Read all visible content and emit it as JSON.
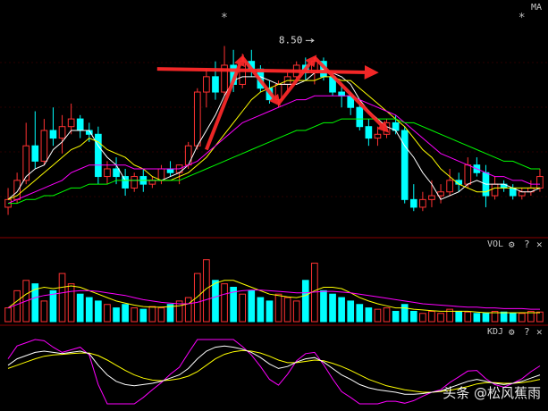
{
  "chart_data": {
    "type": "candlestick",
    "title": "",
    "main_panel": {
      "indicator_label": "MA",
      "price_range": [
        3.9,
        9.3
      ],
      "peak_label": "8.50",
      "peak_index": 34,
      "star_markers": [
        "*",
        "*"
      ],
      "star_indices": [
        24,
        57
      ],
      "candles": [
        [
          4.6,
          5.1,
          4.4,
          4.8
        ],
        [
          4.8,
          5.5,
          4.7,
          5.3
        ],
        [
          5.3,
          6.8,
          5.2,
          6.2
        ],
        [
          6.2,
          7.1,
          5.6,
          5.8
        ],
        [
          5.8,
          6.9,
          5.7,
          6.6
        ],
        [
          6.6,
          7.2,
          6.2,
          6.4
        ],
        [
          6.4,
          7.0,
          6.0,
          6.7
        ],
        [
          6.7,
          7.3,
          6.5,
          6.9
        ],
        [
          6.9,
          7.0,
          6.4,
          6.6
        ],
        [
          6.6,
          6.8,
          6.3,
          6.5
        ],
        [
          6.5,
          6.7,
          5.2,
          5.4
        ],
        [
          5.4,
          5.8,
          5.2,
          5.6
        ],
        [
          5.6,
          5.9,
          5.2,
          5.4
        ],
        [
          5.4,
          5.6,
          4.9,
          5.1
        ],
        [
          5.1,
          5.5,
          5.0,
          5.4
        ],
        [
          5.4,
          5.6,
          5.0,
          5.2
        ],
        [
          5.2,
          5.4,
          5.1,
          5.3
        ],
        [
          5.3,
          5.7,
          5.2,
          5.6
        ],
        [
          5.6,
          5.8,
          5.4,
          5.5
        ],
        [
          5.5,
          5.7,
          5.2,
          5.7
        ],
        [
          5.7,
          6.3,
          5.6,
          6.2
        ],
        [
          6.2,
          7.7,
          6.1,
          7.6
        ],
        [
          7.6,
          8.2,
          7.2,
          8.0
        ],
        [
          8.0,
          8.4,
          7.4,
          7.6
        ],
        [
          7.6,
          8.8,
          7.5,
          8.3
        ],
        [
          8.3,
          8.7,
          7.6,
          7.8
        ],
        [
          7.8,
          8.6,
          7.7,
          8.4
        ],
        [
          8.4,
          8.7,
          8.0,
          8.2
        ],
        [
          8.2,
          8.3,
          7.6,
          7.7
        ],
        [
          7.7,
          7.9,
          7.3,
          7.4
        ],
        [
          7.4,
          7.9,
          7.2,
          7.8
        ],
        [
          7.8,
          8.1,
          7.6,
          8.0
        ],
        [
          8.0,
          8.4,
          7.9,
          8.3
        ],
        [
          8.3,
          8.5,
          7.9,
          8.1
        ],
        [
          8.1,
          8.5,
          7.8,
          8.4
        ],
        [
          8.4,
          8.5,
          7.9,
          8.0
        ],
        [
          8.0,
          8.1,
          7.5,
          7.6
        ],
        [
          7.6,
          7.8,
          7.2,
          7.5
        ],
        [
          7.5,
          7.6,
          7.0,
          7.2
        ],
        [
          7.2,
          7.3,
          6.6,
          6.7
        ],
        [
          6.7,
          6.9,
          6.2,
          6.4
        ],
        [
          6.4,
          6.7,
          6.2,
          6.5
        ],
        [
          6.5,
          6.9,
          6.4,
          6.8
        ],
        [
          6.8,
          7.0,
          6.5,
          6.6
        ],
        [
          6.6,
          6.7,
          4.7,
          4.8
        ],
        [
          4.8,
          5.2,
          4.5,
          4.6
        ],
        [
          4.6,
          5.0,
          4.5,
          4.8
        ],
        [
          4.8,
          5.3,
          4.6,
          4.9
        ],
        [
          4.9,
          5.2,
          4.7,
          5.0
        ],
        [
          5.0,
          5.6,
          4.9,
          5.3
        ],
        [
          5.3,
          5.5,
          5.0,
          5.2
        ],
        [
          5.2,
          5.9,
          5.1,
          5.7
        ],
        [
          5.7,
          5.9,
          5.4,
          5.5
        ],
        [
          5.5,
          5.7,
          4.6,
          4.9
        ],
        [
          4.9,
          5.4,
          4.8,
          5.2
        ],
        [
          5.2,
          5.3,
          5.0,
          5.1
        ],
        [
          5.1,
          5.2,
          4.8,
          4.9
        ],
        [
          4.9,
          5.1,
          4.8,
          5.0
        ],
        [
          5.0,
          5.3,
          4.9,
          5.1
        ],
        [
          5.1,
          5.6,
          5.0,
          5.4
        ]
      ],
      "ma_series": [
        {
          "color": "#ffffff",
          "values": [
            4.8,
            5.0,
            5.4,
            5.6,
            5.7,
            6.1,
            6.3,
            6.6,
            6.6,
            6.6,
            6.2,
            5.9,
            5.7,
            5.3,
            5.3,
            5.3,
            5.3,
            5.3,
            5.4,
            5.5,
            5.7,
            6.2,
            6.6,
            7.0,
            7.5,
            7.9,
            8.0,
            8.0,
            8.0,
            7.9,
            7.8,
            7.8,
            7.8,
            7.9,
            8.1,
            8.2,
            8.1,
            8.0,
            7.8,
            7.4,
            7.1,
            6.9,
            6.7,
            6.6,
            6.2,
            5.9,
            5.5,
            5.2,
            4.8,
            4.9,
            5.0,
            5.2,
            5.3,
            5.2,
            5.2,
            5.2,
            5.1,
            5.0,
            5.0,
            5.1
          ]
        },
        {
          "color": "#ffff00",
          "values": [
            4.8,
            4.9,
            5.1,
            5.3,
            5.5,
            5.7,
            5.9,
            6.1,
            6.2,
            6.4,
            6.3,
            6.1,
            6.0,
            5.9,
            5.7,
            5.6,
            5.4,
            5.3,
            5.3,
            5.4,
            5.5,
            5.7,
            5.9,
            6.2,
            6.5,
            6.8,
            7.1,
            7.4,
            7.6,
            7.7,
            7.8,
            7.9,
            7.9,
            7.9,
            7.9,
            8.0,
            8.0,
            7.9,
            7.9,
            7.7,
            7.5,
            7.3,
            7.1,
            6.9,
            6.7,
            6.4,
            6.1,
            5.9,
            5.6,
            5.4,
            5.2,
            5.1,
            5.0,
            5.0,
            5.1,
            5.1,
            5.1,
            5.1,
            5.1,
            5.1
          ]
        },
        {
          "color": "#ff00ff",
          "values": [
            4.7,
            4.8,
            4.9,
            5.0,
            5.1,
            5.2,
            5.3,
            5.5,
            5.6,
            5.7,
            5.7,
            5.7,
            5.7,
            5.7,
            5.6,
            5.6,
            5.6,
            5.6,
            5.6,
            5.6,
            5.7,
            5.8,
            6.0,
            6.2,
            6.4,
            6.6,
            6.8,
            6.9,
            7.0,
            7.1,
            7.2,
            7.3,
            7.4,
            7.4,
            7.5,
            7.5,
            7.5,
            7.5,
            7.5,
            7.4,
            7.3,
            7.2,
            7.1,
            7.0,
            6.8,
            6.6,
            6.4,
            6.2,
            6.0,
            5.9,
            5.8,
            5.7,
            5.6,
            5.5,
            5.4,
            5.4,
            5.3,
            5.3,
            5.2,
            5.2
          ]
        },
        {
          "color": "#00ff00",
          "values": [
            4.7,
            4.7,
            4.8,
            4.8,
            4.9,
            4.9,
            5.0,
            5.1,
            5.1,
            5.2,
            5.2,
            5.2,
            5.3,
            5.3,
            5.3,
            5.3,
            5.3,
            5.3,
            5.3,
            5.3,
            5.4,
            5.5,
            5.6,
            5.7,
            5.8,
            5.9,
            6.0,
            6.1,
            6.2,
            6.3,
            6.4,
            6.5,
            6.6,
            6.6,
            6.7,
            6.8,
            6.8,
            6.9,
            6.9,
            6.9,
            6.9,
            6.9,
            6.9,
            6.9,
            6.8,
            6.8,
            6.7,
            6.6,
            6.5,
            6.4,
            6.3,
            6.2,
            6.1,
            6.0,
            5.9,
            5.8,
            5.8,
            5.7,
            5.6,
            5.6
          ]
        }
      ],
      "annotations": {
        "horizontal_arrow": {
          "from_index": 21,
          "to_index": 59,
          "price": 8.25,
          "label": ""
        },
        "m_pattern_indices": [
          22,
          26,
          30,
          34,
          42
        ],
        "m_pattern_prices": [
          6.1,
          8.5,
          7.3,
          8.5,
          6.6
        ]
      }
    },
    "volume_panel": {
      "label": "VOL",
      "range": [
        0,
        100
      ],
      "values": [
        20,
        45,
        60,
        55,
        30,
        45,
        70,
        55,
        40,
        35,
        30,
        25,
        20,
        25,
        20,
        18,
        22,
        20,
        25,
        30,
        35,
        70,
        90,
        60,
        55,
        50,
        40,
        45,
        35,
        30,
        40,
        35,
        30,
        60,
        85,
        45,
        40,
        35,
        30,
        25,
        20,
        18,
        20,
        15,
        25,
        15,
        12,
        15,
        12,
        18,
        15,
        14,
        12,
        12,
        15,
        14,
        13,
        12,
        15,
        14
      ],
      "ma_series": [
        {
          "color": "#ffff00",
          "values": [
            20,
            30,
            40,
            47,
            50,
            48,
            50,
            52,
            50,
            45,
            40,
            35,
            30,
            27,
            24,
            22,
            21,
            21,
            22,
            23,
            26,
            36,
            48,
            56,
            60,
            60,
            55,
            50,
            45,
            40,
            38,
            36,
            35,
            38,
            45,
            50,
            50,
            48,
            42,
            35,
            30,
            26,
            23,
            20,
            20,
            18,
            17,
            16,
            15,
            15,
            15,
            15,
            14,
            13,
            13,
            13,
            13,
            13,
            13,
            13
          ]
        },
        {
          "color": "#ff00ff",
          "values": [
            20,
            25,
            30,
            35,
            38,
            40,
            42,
            44,
            45,
            45,
            44,
            42,
            40,
            38,
            35,
            32,
            30,
            28,
            27,
            26,
            26,
            28,
            32,
            36,
            40,
            43,
            45,
            46,
            46,
            45,
            44,
            43,
            42,
            42,
            43,
            44,
            44,
            43,
            42,
            40,
            38,
            36,
            34,
            32,
            30,
            28,
            26,
            25,
            24,
            23,
            22,
            21,
            21,
            20,
            20,
            19,
            19,
            19,
            18,
            18
          ]
        }
      ]
    },
    "kdj_panel": {
      "label": "KDJ",
      "range": [
        0,
        100
      ],
      "k": [
        60,
        70,
        75,
        80,
        82,
        80,
        78,
        80,
        82,
        78,
        60,
        45,
        35,
        30,
        28,
        30,
        32,
        35,
        40,
        45,
        55,
        70,
        82,
        88,
        90,
        88,
        85,
        80,
        72,
        62,
        55,
        58,
        65,
        70,
        72,
        65,
        55,
        45,
        38,
        30,
        25,
        22,
        20,
        18,
        15,
        15,
        16,
        18,
        20,
        25,
        30,
        35,
        38,
        35,
        32,
        30,
        32,
        35,
        40,
        45
      ],
      "d": [
        55,
        60,
        65,
        70,
        74,
        76,
        77,
        78,
        79,
        79,
        75,
        68,
        60,
        52,
        45,
        40,
        37,
        36,
        37,
        39,
        43,
        50,
        60,
        70,
        77,
        81,
        83,
        82,
        79,
        74,
        68,
        64,
        64,
        66,
        68,
        67,
        63,
        58,
        52,
        45,
        38,
        33,
        28,
        25,
        22,
        20,
        18,
        18,
        19,
        21,
        24,
        27,
        31,
        33,
        33,
        32,
        32,
        33,
        35,
        38
      ],
      "j": [
        70,
        90,
        95,
        100,
        98,
        88,
        80,
        84,
        88,
        76,
        30,
        0,
        0,
        0,
        0,
        10,
        22,
        33,
        46,
        57,
        79,
        100,
        100,
        100,
        100,
        100,
        89,
        76,
        58,
        38,
        29,
        46,
        67,
        78,
        80,
        61,
        39,
        19,
        10,
        0,
        0,
        0,
        4,
        4,
        1,
        5,
        12,
        18,
        22,
        33,
        42,
        51,
        52,
        39,
        30,
        26,
        32,
        39,
        50,
        59
      ]
    },
    "panel_controls": {
      "gear": "⚙",
      "help": "?",
      "close": "✕"
    }
  },
  "watermark": "头条 @松风蕉雨"
}
